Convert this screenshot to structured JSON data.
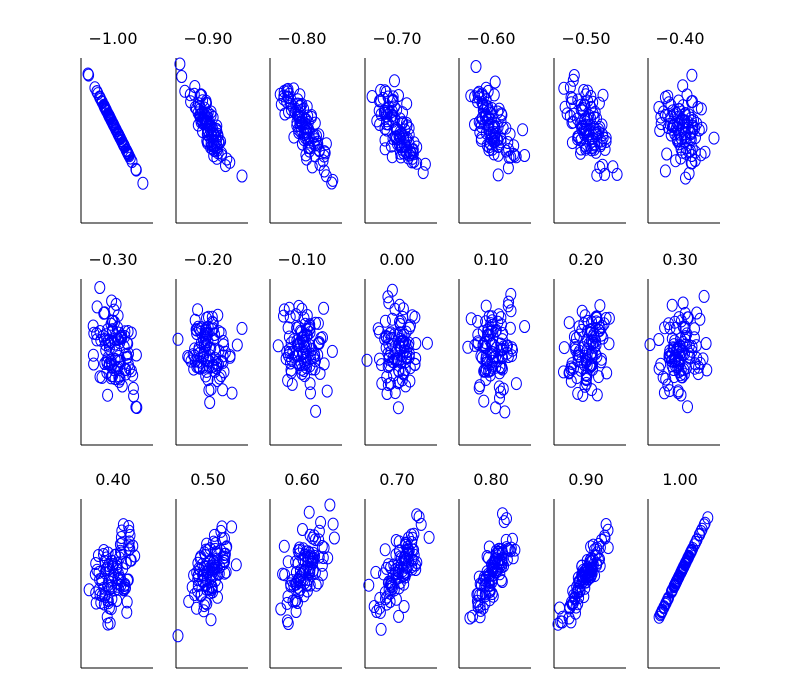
{
  "chart_data": {
    "type": "scatter",
    "grid": false,
    "legend": "none",
    "axis_ticks": false,
    "marker": "open-circle",
    "marker_color": "#0000ff",
    "axis_color": "#000000",
    "background": "#ffffff",
    "layout": {
      "rows": 3,
      "columns": 7
    },
    "points_per_panel": 100,
    "x_range": [
      -3,
      3
    ],
    "y_range": [
      -4.3,
      3
    ],
    "panels": [
      {
        "title": "−1.00",
        "correlation": -1.0
      },
      {
        "title": "−0.90",
        "correlation": -0.9
      },
      {
        "title": "−0.80",
        "correlation": -0.8
      },
      {
        "title": "−0.70",
        "correlation": -0.7
      },
      {
        "title": "−0.60",
        "correlation": -0.6
      },
      {
        "title": "−0.50",
        "correlation": -0.5
      },
      {
        "title": "−0.40",
        "correlation": -0.4
      },
      {
        "title": "−0.30",
        "correlation": -0.3
      },
      {
        "title": "−0.20",
        "correlation": -0.2
      },
      {
        "title": "−0.10",
        "correlation": -0.1
      },
      {
        "title": "0.00",
        "correlation": 0.0
      },
      {
        "title": "0.10",
        "correlation": 0.1
      },
      {
        "title": "0.20",
        "correlation": 0.2
      },
      {
        "title": "0.30",
        "correlation": 0.3
      },
      {
        "title": "0.40",
        "correlation": 0.4
      },
      {
        "title": "0.50",
        "correlation": 0.5
      },
      {
        "title": "0.60",
        "correlation": 0.6
      },
      {
        "title": "0.70",
        "correlation": 0.7
      },
      {
        "title": "0.80",
        "correlation": 0.8
      },
      {
        "title": "0.90",
        "correlation": 0.9
      },
      {
        "title": "1.00",
        "correlation": 1.0
      }
    ]
  }
}
